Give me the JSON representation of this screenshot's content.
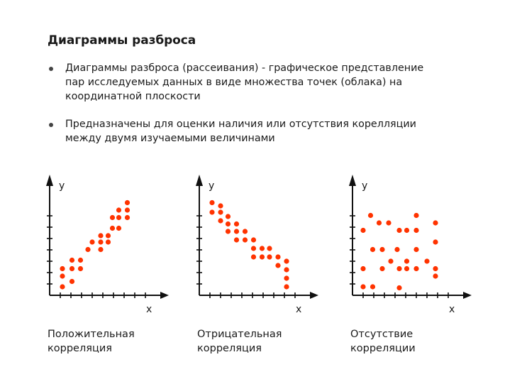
{
  "title": "Диаграммы разброса",
  "bullets": [
    "Диаграммы разброса (рассеивания) - графическое представление пар исследуемых данных в виде множества точек (облака) на координатной плоскости",
    "Предназначены для оценки наличия или отсутствия корелляции между двумя изучаемыми величинами"
  ],
  "colors": {
    "point": "#ff3300",
    "axis": "#111111"
  },
  "chart_data": [
    {
      "type": "scatter",
      "xlabel": "x",
      "ylabel": "y",
      "caption": [
        "Положительная",
        "корреляция"
      ],
      "xlim": [
        0,
        10
      ],
      "ylim": [
        0,
        10
      ],
      "points": [
        [
          1.2,
          0.8
        ],
        [
          1.2,
          1.8
        ],
        [
          1.2,
          2.5
        ],
        [
          2.1,
          1.3
        ],
        [
          2.1,
          2.5
        ],
        [
          2.1,
          3.3
        ],
        [
          2.9,
          2.5
        ],
        [
          2.9,
          3.3
        ],
        [
          3.6,
          4.3
        ],
        [
          4.0,
          5.0
        ],
        [
          4.8,
          4.3
        ],
        [
          4.8,
          5.0
        ],
        [
          4.8,
          5.6
        ],
        [
          5.5,
          5.0
        ],
        [
          5.5,
          5.6
        ],
        [
          5.9,
          6.3
        ],
        [
          5.9,
          7.3
        ],
        [
          6.5,
          6.3
        ],
        [
          6.5,
          7.3
        ],
        [
          6.5,
          8.0
        ],
        [
          7.3,
          7.3
        ],
        [
          7.3,
          8.0
        ],
        [
          7.3,
          8.7
        ]
      ]
    },
    {
      "type": "scatter",
      "xlabel": "x",
      "ylabel": "y",
      "caption": [
        "Отрицательная",
        "корреляция"
      ],
      "xlim": [
        0,
        10
      ],
      "ylim": [
        0,
        10
      ],
      "points": [
        [
          1.2,
          8.7
        ],
        [
          1.2,
          7.8
        ],
        [
          2.0,
          8.4
        ],
        [
          2.0,
          7.8
        ],
        [
          2.0,
          7.0
        ],
        [
          2.7,
          7.4
        ],
        [
          2.7,
          6.7
        ],
        [
          2.7,
          6.0
        ],
        [
          3.5,
          6.7
        ],
        [
          3.5,
          6.0
        ],
        [
          3.5,
          5.2
        ],
        [
          4.3,
          6.0
        ],
        [
          4.3,
          5.2
        ],
        [
          5.1,
          5.2
        ],
        [
          5.1,
          4.4
        ],
        [
          5.1,
          3.6
        ],
        [
          5.9,
          4.4
        ],
        [
          5.9,
          3.6
        ],
        [
          6.6,
          4.4
        ],
        [
          6.6,
          3.6
        ],
        [
          7.4,
          3.6
        ],
        [
          7.4,
          2.8
        ],
        [
          8.2,
          3.2
        ],
        [
          8.2,
          2.4
        ],
        [
          8.2,
          1.6
        ],
        [
          8.2,
          0.8
        ]
      ]
    },
    {
      "type": "scatter",
      "xlabel": "x",
      "ylabel": "y",
      "caption": [
        "Отсутствие",
        "корреляции"
      ],
      "xlim": [
        0,
        10
      ],
      "ylim": [
        0,
        10
      ],
      "points": [
        [
          1.0,
          6.1
        ],
        [
          1.0,
          2.5
        ],
        [
          1.0,
          0.8
        ],
        [
          1.7,
          7.5
        ],
        [
          1.9,
          4.3
        ],
        [
          1.9,
          0.8
        ],
        [
          2.5,
          6.8
        ],
        [
          2.8,
          4.3
        ],
        [
          2.8,
          2.5
        ],
        [
          3.4,
          6.8
        ],
        [
          3.6,
          3.2
        ],
        [
          4.2,
          4.3
        ],
        [
          4.4,
          6.1
        ],
        [
          4.4,
          2.5
        ],
        [
          4.4,
          0.7
        ],
        [
          5.1,
          6.1
        ],
        [
          5.1,
          3.2
        ],
        [
          5.1,
          2.5
        ],
        [
          6.0,
          7.5
        ],
        [
          6.0,
          6.1
        ],
        [
          6.0,
          4.3
        ],
        [
          6.0,
          2.5
        ],
        [
          7.0,
          3.2
        ],
        [
          7.8,
          6.8
        ],
        [
          7.8,
          5.0
        ],
        [
          7.8,
          2.5
        ],
        [
          7.8,
          1.8
        ]
      ]
    }
  ]
}
